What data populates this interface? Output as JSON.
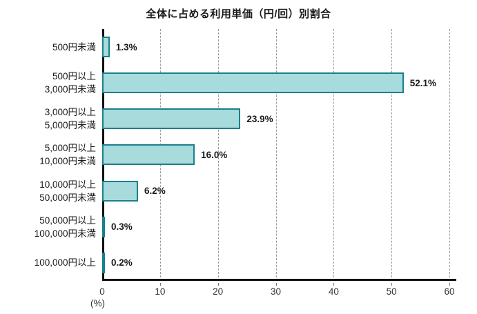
{
  "chart_data": {
    "type": "bar",
    "orientation": "horizontal",
    "title": "全体に占める利用単価（円/回）別割合",
    "categories": [
      "500円未満",
      "500円以上\n3,000円未満",
      "3,000円以上\n5,000円未満",
      "5,000円以上\n10,000円未満",
      "10,000円以上\n50,000円未満",
      "50,000円以上\n100,000円未満",
      "100,000円以上"
    ],
    "values": [
      1.3,
      52.1,
      23.9,
      16.0,
      6.2,
      0.3,
      0.2
    ],
    "value_labels": [
      "1.3%",
      "52.1%",
      "23.9%",
      "16.0%",
      "6.2%",
      "0.3%",
      "0.2%"
    ],
    "xlabel": "(%)",
    "xlim": [
      0,
      60
    ],
    "xticks": [
      0,
      10,
      20,
      30,
      40,
      50,
      60
    ],
    "grid": "vertical-dashed",
    "legend": "none",
    "bar_fill_color": "#a8dbdc",
    "bar_border_color": "#1a7f8c",
    "axis_color": "#111111",
    "gridline_color": "#9a9a9a"
  }
}
